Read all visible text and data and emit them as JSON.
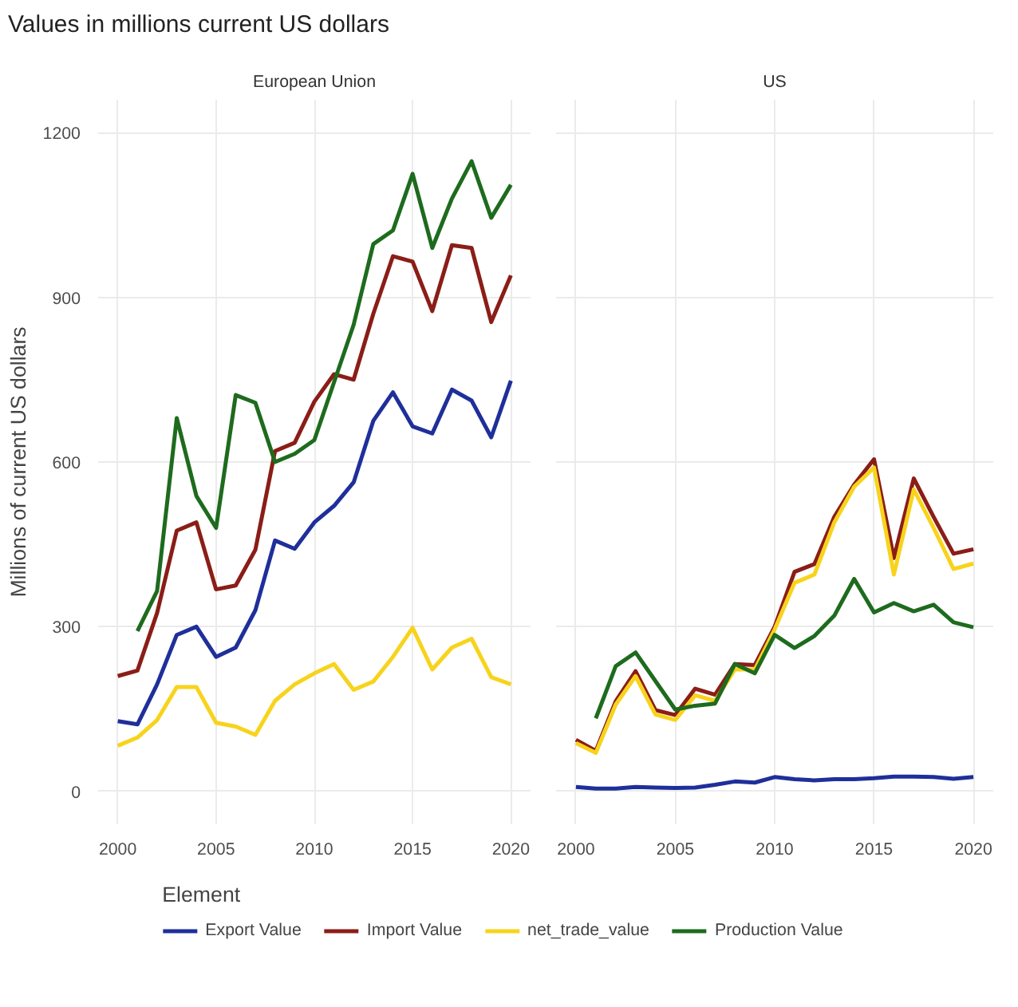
{
  "chart_data": [
    {
      "type": "line",
      "title": "Values in millions current US dollars",
      "subtitle": "European Union",
      "ylabel": "Millions of current US dollars",
      "legend_title": "Element",
      "legend": "bottom",
      "grid": true,
      "xlim": [
        1999,
        2021
      ],
      "xticks": [
        2000,
        2005,
        2010,
        2015,
        2020
      ],
      "ylim": [
        -60,
        1260
      ],
      "yticks": [
        0,
        300,
        600,
        900,
        1200
      ],
      "x": [
        2000,
        2001,
        2002,
        2003,
        2004,
        2005,
        2006,
        2007,
        2008,
        2009,
        2010,
        2011,
        2012,
        2013,
        2014,
        2015,
        2016,
        2017,
        2018,
        2019,
        2020
      ],
      "series": [
        {
          "name": "Export Value",
          "color": "#1f2f9a",
          "values": [
            128,
            122,
            195,
            285,
            300,
            245,
            262,
            330,
            457,
            442,
            490,
            520,
            563,
            675,
            727,
            665,
            652,
            732,
            712,
            645,
            748
          ]
        },
        {
          "name": "Import Value",
          "color": "#8b1d17",
          "values": [
            210,
            220,
            325,
            475,
            490,
            368,
            375,
            440,
            620,
            635,
            710,
            760,
            750,
            870,
            975,
            965,
            875,
            995,
            990,
            855,
            940
          ]
        },
        {
          "name": "net_trade_value",
          "color": "#f7d31c",
          "values": [
            83,
            98,
            130,
            190,
            190,
            125,
            118,
            103,
            165,
            195,
            215,
            232,
            185,
            200,
            245,
            298,
            222,
            262,
            278,
            208,
            195
          ]
        },
        {
          "name": "Production Value",
          "color": "#1e6b1e",
          "values": [
            null,
            292,
            365,
            680,
            538,
            480,
            722,
            708,
            600,
            615,
            640,
            745,
            850,
            997,
            1022,
            1125,
            990,
            1080,
            1148,
            1045,
            1105
          ]
        }
      ]
    },
    {
      "type": "line",
      "title": "US",
      "grid": true,
      "tick_labels": "x",
      "xlim": [
        1999,
        2021
      ],
      "xticks": [
        2000,
        2005,
        2010,
        2015,
        2020
      ],
      "ylim": [
        -60,
        1260
      ],
      "yticks": [
        0,
        300,
        600,
        900,
        1200
      ],
      "x": [
        2000,
        2001,
        2002,
        2003,
        2004,
        2005,
        2006,
        2007,
        2008,
        2009,
        2010,
        2011,
        2012,
        2013,
        2014,
        2015,
        2016,
        2017,
        2018,
        2019,
        2020
      ],
      "series": [
        {
          "color": "#1f2f9a",
          "values": [
            8,
            5,
            5,
            8,
            7,
            6,
            7,
            12,
            18,
            16,
            26,
            22,
            20,
            22,
            22,
            24,
            27,
            27,
            26,
            23,
            26
          ]
        },
        {
          "color": "#8b1d17",
          "values": [
            94,
            74,
            164,
            219,
            148,
            139,
            187,
            176,
            232,
            230,
            300,
            400,
            414,
            500,
            559,
            605,
            425,
            570,
            500,
            433,
            441
          ]
        },
        {
          "color": "#f7d31c",
          "values": [
            88,
            70,
            158,
            210,
            140,
            130,
            175,
            165,
            222,
            222,
            295,
            380,
            395,
            490,
            555,
            590,
            395,
            550,
            480,
            405,
            415
          ]
        },
        {
          "color": "#1e6b1e",
          "values": [
            null,
            133,
            228,
            253,
            201,
            149,
            156,
            160,
            232,
            215,
            285,
            261,
            283,
            320,
            387,
            326,
            343,
            328,
            340,
            308,
            299
          ]
        }
      ]
    }
  ]
}
